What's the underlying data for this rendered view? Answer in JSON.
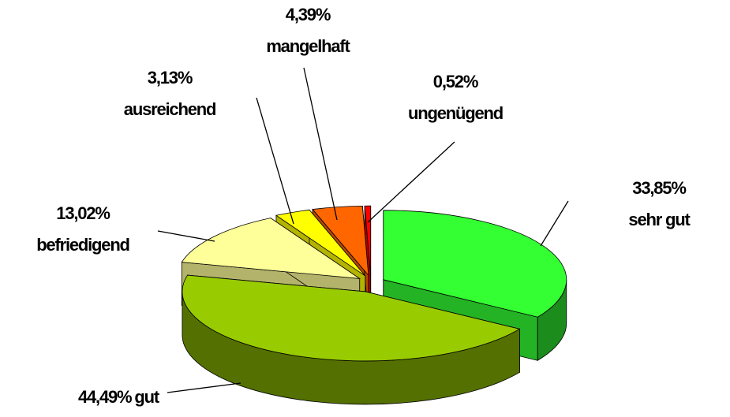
{
  "chart_data": {
    "type": "pie",
    "categories": [
      "sehr gut",
      "gut",
      "befriedigend",
      "ausreichend",
      "mangelhaft",
      "ungenügend"
    ],
    "values": [
      33.85,
      44.49,
      13.02,
      3.13,
      4.39,
      0.52
    ],
    "value_labels": [
      "33,85%",
      "44,49%",
      "13,02%",
      "3,13%",
      "4,39%",
      "0,52%"
    ],
    "colors": [
      "#33ff33",
      "#99cc00",
      "#ffff99",
      "#ffff00",
      "#ff6600",
      "#ff0000"
    ]
  }
}
